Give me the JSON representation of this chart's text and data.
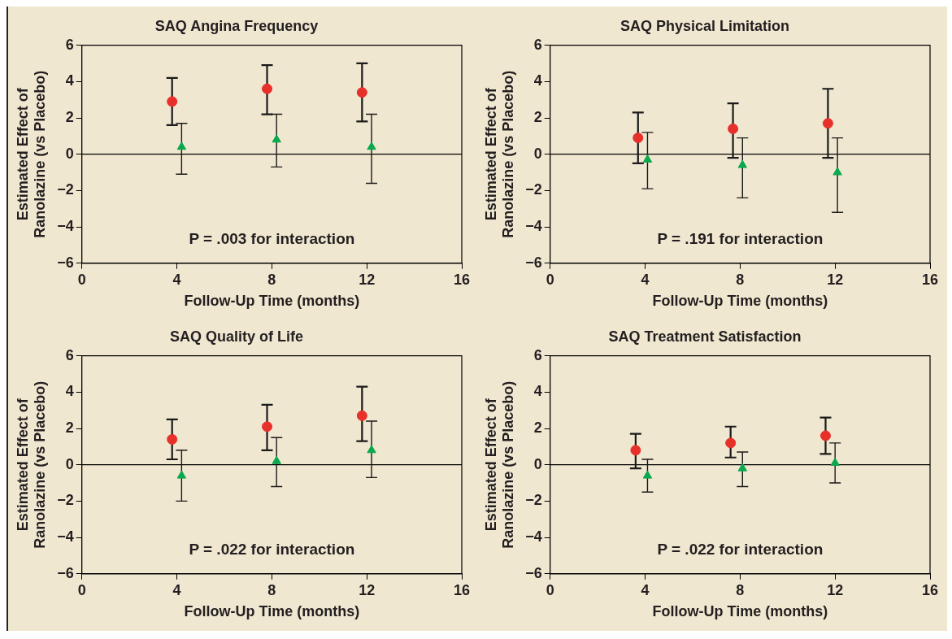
{
  "chart_data": [
    {
      "type": "scatter",
      "title": "SAQ Angina Frequency",
      "xlabel": "Follow-Up Time (months)",
      "ylabel": "Estimated Effect of\nRanolazine (vs Placebo)",
      "xlim": [
        0,
        16
      ],
      "xticks": [
        0,
        4,
        8,
        12,
        16
      ],
      "ylim": [
        -6,
        6
      ],
      "yticks": [
        -6,
        -4,
        -2,
        0,
        2,
        4,
        6
      ],
      "ref_lines": [
        {
          "axis": "y",
          "value": 0,
          "color": "#000000"
        }
      ],
      "annotations": [
        "P = .003 for interaction"
      ],
      "series": [
        {
          "color": "#e8302a",
          "marker": "circle",
          "x": [
            3.8,
            7.8,
            11.8
          ],
          "values": [
            2.9,
            3.6,
            3.4
          ],
          "errors": [
            [
              1.6,
              4.2
            ],
            [
              2.2,
              4.9
            ],
            [
              1.8,
              5.0
            ]
          ]
        },
        {
          "color": "#0aa84f",
          "marker": "triangle",
          "x": [
            4.2,
            8.2,
            12.2
          ],
          "values": [
            0.4,
            0.8,
            0.4
          ],
          "errors": [
            [
              -1.1,
              1.7
            ],
            [
              -0.7,
              2.2
            ],
            [
              -1.6,
              2.2
            ]
          ]
        }
      ]
    },
    {
      "type": "scatter",
      "title": "SAQ Physical Limitation",
      "xlabel": "Follow-Up Time (months)",
      "ylabel": "Estimated Effect of\nRanolazine (vs Placebo)",
      "xlim": [
        0,
        16
      ],
      "xticks": [
        0,
        4,
        8,
        12,
        16
      ],
      "ylim": [
        -6,
        6
      ],
      "yticks": [
        -6,
        -4,
        -2,
        0,
        2,
        4,
        6
      ],
      "ref_lines": [
        {
          "axis": "y",
          "value": 0,
          "color": "#000000"
        }
      ],
      "annotations": [
        "P = .191 for interaction"
      ],
      "series": [
        {
          "color": "#e8302a",
          "marker": "circle",
          "x": [
            3.7,
            7.7,
            11.7
          ],
          "values": [
            0.9,
            1.4,
            1.7
          ],
          "errors": [
            [
              -0.5,
              2.3
            ],
            [
              -0.2,
              2.8
            ],
            [
              -0.2,
              3.6
            ]
          ]
        },
        {
          "color": "#0aa84f",
          "marker": "triangle",
          "x": [
            4.1,
            8.1,
            12.1
          ],
          "values": [
            -0.3,
            -0.6,
            -1.0
          ],
          "errors": [
            [
              -1.9,
              1.2
            ],
            [
              -2.4,
              0.9
            ],
            [
              -3.2,
              0.9
            ]
          ]
        }
      ]
    },
    {
      "type": "scatter",
      "title": "SAQ Quality of Life",
      "xlabel": "Follow-Up Time (months)",
      "ylabel": "Estimated Effect of\nRanolazine (vs Placebo)",
      "xlim": [
        0,
        16
      ],
      "xticks": [
        0,
        4,
        8,
        12,
        16
      ],
      "ylim": [
        -6,
        6
      ],
      "yticks": [
        -6,
        -4,
        -2,
        0,
        2,
        4,
        6
      ],
      "ref_lines": [
        {
          "axis": "y",
          "value": 0,
          "color": "#000000"
        }
      ],
      "annotations": [
        "P = .022 for interaction"
      ],
      "series": [
        {
          "color": "#e8302a",
          "marker": "circle",
          "x": [
            3.8,
            7.8,
            11.8
          ],
          "values": [
            1.4,
            2.1,
            2.7
          ],
          "errors": [
            [
              0.3,
              2.5
            ],
            [
              0.8,
              3.3
            ],
            [
              1.3,
              4.3
            ]
          ]
        },
        {
          "color": "#0aa84f",
          "marker": "triangle",
          "x": [
            4.2,
            8.2,
            12.2
          ],
          "values": [
            -0.6,
            0.2,
            0.8
          ],
          "errors": [
            [
              -2.0,
              0.8
            ],
            [
              -1.2,
              1.5
            ],
            [
              -0.7,
              2.4
            ]
          ]
        }
      ]
    },
    {
      "type": "scatter",
      "title": "SAQ Treatment Satisfaction",
      "xlabel": "Follow-Up Time (months)",
      "ylabel": "Estimated Effect of\nRanolazine (vs Placebo)",
      "xlim": [
        0,
        16
      ],
      "xticks": [
        0,
        4,
        8,
        12,
        16
      ],
      "ylim": [
        -6,
        6
      ],
      "yticks": [
        -6,
        -4,
        -2,
        0,
        2,
        4,
        6
      ],
      "ref_lines": [
        {
          "axis": "y",
          "value": 0,
          "color": "#000000"
        }
      ],
      "annotations": [
        "P = .022 for interaction"
      ],
      "series": [
        {
          "color": "#e8302a",
          "marker": "circle",
          "x": [
            3.6,
            7.6,
            11.6
          ],
          "values": [
            0.8,
            1.2,
            1.6
          ],
          "errors": [
            [
              -0.2,
              1.7
            ],
            [
              0.4,
              2.1
            ],
            [
              0.6,
              2.6
            ]
          ]
        },
        {
          "color": "#0aa84f",
          "marker": "triangle",
          "x": [
            4.1,
            8.1,
            12.0
          ],
          "values": [
            -0.6,
            -0.2,
            0.1
          ],
          "errors": [
            [
              -1.5,
              0.3
            ],
            [
              -1.2,
              0.7
            ],
            [
              -1.0,
              1.2
            ]
          ]
        }
      ]
    }
  ]
}
